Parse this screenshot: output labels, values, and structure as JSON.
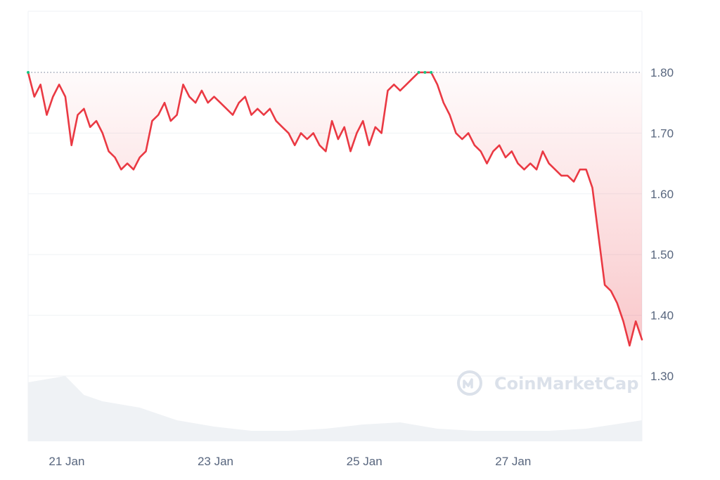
{
  "chart_data": {
    "type": "line",
    "title": "",
    "xlabel": "",
    "ylabel": "",
    "ylim": [
      1.2,
      1.9
    ],
    "y_ticks": [
      "1.80",
      "1.70",
      "1.60",
      "1.50",
      "1.40",
      "1.30"
    ],
    "x_ticks": [
      "21 Jan",
      "23 Jan",
      "25 Jan",
      "27 Jan"
    ],
    "reference_value": 1.8,
    "grid": "horizontal",
    "colors": {
      "line": "#ea3943",
      "up": "#16c784",
      "fill": "#ea3943",
      "volume": "#eff2f5"
    },
    "price": [
      [
        "2025-01-20 12:00",
        1.8
      ],
      [
        "2025-01-20 14:00",
        1.76
      ],
      [
        "2025-01-20 16:00",
        1.78
      ],
      [
        "2025-01-20 18:00",
        1.73
      ],
      [
        "2025-01-20 20:00",
        1.76
      ],
      [
        "2025-01-20 22:00",
        1.78
      ],
      [
        "2025-01-21 00:00",
        1.76
      ],
      [
        "2025-01-21 02:00",
        1.68
      ],
      [
        "2025-01-21 04:00",
        1.73
      ],
      [
        "2025-01-21 06:00",
        1.74
      ],
      [
        "2025-01-21 08:00",
        1.71
      ],
      [
        "2025-01-21 10:00",
        1.72
      ],
      [
        "2025-01-21 12:00",
        1.7
      ],
      [
        "2025-01-21 14:00",
        1.67
      ],
      [
        "2025-01-21 16:00",
        1.66
      ],
      [
        "2025-01-21 18:00",
        1.64
      ],
      [
        "2025-01-21 20:00",
        1.65
      ],
      [
        "2025-01-21 22:00",
        1.64
      ],
      [
        "2025-01-22 00:00",
        1.66
      ],
      [
        "2025-01-22 02:00",
        1.67
      ],
      [
        "2025-01-22 04:00",
        1.72
      ],
      [
        "2025-01-22 06:00",
        1.73
      ],
      [
        "2025-01-22 08:00",
        1.75
      ],
      [
        "2025-01-22 10:00",
        1.72
      ],
      [
        "2025-01-22 12:00",
        1.73
      ],
      [
        "2025-01-22 14:00",
        1.78
      ],
      [
        "2025-01-22 16:00",
        1.76
      ],
      [
        "2025-01-22 18:00",
        1.75
      ],
      [
        "2025-01-22 20:00",
        1.77
      ],
      [
        "2025-01-22 22:00",
        1.75
      ],
      [
        "2025-01-23 00:00",
        1.76
      ],
      [
        "2025-01-23 02:00",
        1.75
      ],
      [
        "2025-01-23 04:00",
        1.74
      ],
      [
        "2025-01-23 06:00",
        1.73
      ],
      [
        "2025-01-23 08:00",
        1.75
      ],
      [
        "2025-01-23 10:00",
        1.76
      ],
      [
        "2025-01-23 12:00",
        1.73
      ],
      [
        "2025-01-23 14:00",
        1.74
      ],
      [
        "2025-01-23 16:00",
        1.73
      ],
      [
        "2025-01-23 18:00",
        1.74
      ],
      [
        "2025-01-23 20:00",
        1.72
      ],
      [
        "2025-01-23 22:00",
        1.71
      ],
      [
        "2025-01-24 00:00",
        1.7
      ],
      [
        "2025-01-24 02:00",
        1.68
      ],
      [
        "2025-01-24 04:00",
        1.7
      ],
      [
        "2025-01-24 06:00",
        1.69
      ],
      [
        "2025-01-24 08:00",
        1.7
      ],
      [
        "2025-01-24 10:00",
        1.68
      ],
      [
        "2025-01-24 12:00",
        1.67
      ],
      [
        "2025-01-24 14:00",
        1.72
      ],
      [
        "2025-01-24 16:00",
        1.69
      ],
      [
        "2025-01-24 18:00",
        1.71
      ],
      [
        "2025-01-24 20:00",
        1.67
      ],
      [
        "2025-01-24 22:00",
        1.7
      ],
      [
        "2025-01-25 00:00",
        1.72
      ],
      [
        "2025-01-25 02:00",
        1.68
      ],
      [
        "2025-01-25 04:00",
        1.71
      ],
      [
        "2025-01-25 06:00",
        1.7
      ],
      [
        "2025-01-25 08:00",
        1.77
      ],
      [
        "2025-01-25 10:00",
        1.78
      ],
      [
        "2025-01-25 12:00",
        1.77
      ],
      [
        "2025-01-25 14:00",
        1.78
      ],
      [
        "2025-01-25 16:00",
        1.79
      ],
      [
        "2025-01-25 18:00",
        1.8
      ],
      [
        "2025-01-25 20:00",
        1.8
      ],
      [
        "2025-01-25 22:00",
        1.8
      ],
      [
        "2025-01-26 00:00",
        1.78
      ],
      [
        "2025-01-26 02:00",
        1.75
      ],
      [
        "2025-01-26 04:00",
        1.73
      ],
      [
        "2025-01-26 06:00",
        1.7
      ],
      [
        "2025-01-26 08:00",
        1.69
      ],
      [
        "2025-01-26 10:00",
        1.7
      ],
      [
        "2025-01-26 12:00",
        1.68
      ],
      [
        "2025-01-26 14:00",
        1.67
      ],
      [
        "2025-01-26 16:00",
        1.65
      ],
      [
        "2025-01-26 18:00",
        1.67
      ],
      [
        "2025-01-26 20:00",
        1.68
      ],
      [
        "2025-01-26 22:00",
        1.66
      ],
      [
        "2025-01-27 00:00",
        1.67
      ],
      [
        "2025-01-27 02:00",
        1.65
      ],
      [
        "2025-01-27 04:00",
        1.64
      ],
      [
        "2025-01-27 06:00",
        1.65
      ],
      [
        "2025-01-27 08:00",
        1.64
      ],
      [
        "2025-01-27 10:00",
        1.67
      ],
      [
        "2025-01-27 12:00",
        1.65
      ],
      [
        "2025-01-27 14:00",
        1.64
      ],
      [
        "2025-01-27 16:00",
        1.63
      ],
      [
        "2025-01-27 18:00",
        1.63
      ],
      [
        "2025-01-27 20:00",
        1.62
      ],
      [
        "2025-01-27 22:00",
        1.64
      ],
      [
        "2025-01-28 00:00",
        1.64
      ],
      [
        "2025-01-28 02:00",
        1.61
      ],
      [
        "2025-01-28 04:00",
        1.53
      ],
      [
        "2025-01-28 06:00",
        1.45
      ],
      [
        "2025-01-28 08:00",
        1.44
      ],
      [
        "2025-01-28 10:00",
        1.42
      ],
      [
        "2025-01-28 12:00",
        1.39
      ],
      [
        "2025-01-28 14:00",
        1.35
      ],
      [
        "2025-01-28 16:00",
        1.39
      ],
      [
        "2025-01-28 18:00",
        1.36
      ]
    ],
    "volume_level": [
      [
        "2025-01-20 12:00",
        0.28
      ],
      [
        "2025-01-21 00:00",
        0.31
      ],
      [
        "2025-01-21 06:00",
        0.22
      ],
      [
        "2025-01-21 12:00",
        0.19
      ],
      [
        "2025-01-22 00:00",
        0.16
      ],
      [
        "2025-01-22 12:00",
        0.1
      ],
      [
        "2025-01-23 00:00",
        0.07
      ],
      [
        "2025-01-23 12:00",
        0.05
      ],
      [
        "2025-01-24 00:00",
        0.05
      ],
      [
        "2025-01-24 12:00",
        0.06
      ],
      [
        "2025-01-25 00:00",
        0.08
      ],
      [
        "2025-01-25 12:00",
        0.09
      ],
      [
        "2025-01-26 00:00",
        0.06
      ],
      [
        "2025-01-26 12:00",
        0.05
      ],
      [
        "2025-01-27 00:00",
        0.05
      ],
      [
        "2025-01-27 12:00",
        0.05
      ],
      [
        "2025-01-28 00:00",
        0.06
      ],
      [
        "2025-01-28 18:00",
        0.1
      ]
    ]
  },
  "watermark": {
    "text": "CoinMarketCap",
    "icon": "coinmarketcap-logo-icon"
  }
}
